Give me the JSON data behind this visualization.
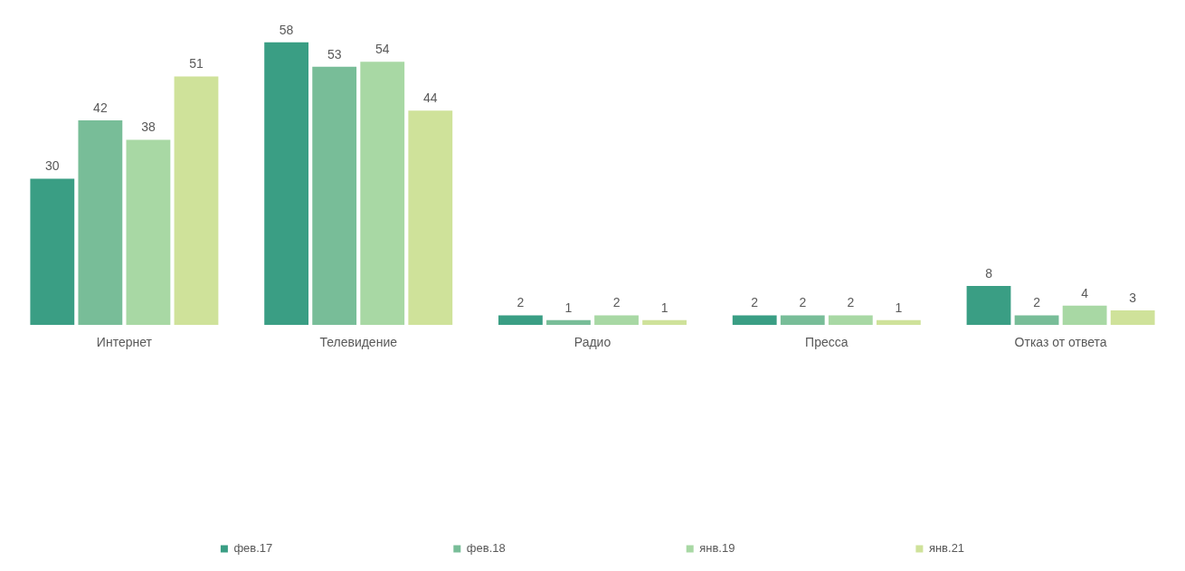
{
  "chart_data": {
    "type": "bar",
    "categories": [
      "Интернет",
      "Телевидение",
      "Радио",
      "Пресса",
      "Отказ от ответа"
    ],
    "series": [
      {
        "name": "фев.17",
        "color": "#3a9e84",
        "values": [
          30,
          58,
          2,
          2,
          8
        ]
      },
      {
        "name": "фев.18",
        "color": "#78bd98",
        "values": [
          42,
          53,
          1,
          2,
          2
        ]
      },
      {
        "name": "янв.19",
        "color": "#a8d8a4",
        "values": [
          38,
          54,
          2,
          2,
          4
        ]
      },
      {
        "name": "янв.21",
        "color": "#cfe29a",
        "values": [
          51,
          44,
          1,
          1,
          3
        ]
      }
    ],
    "data_labels": true,
    "legend": "bottom",
    "grid": false
  }
}
